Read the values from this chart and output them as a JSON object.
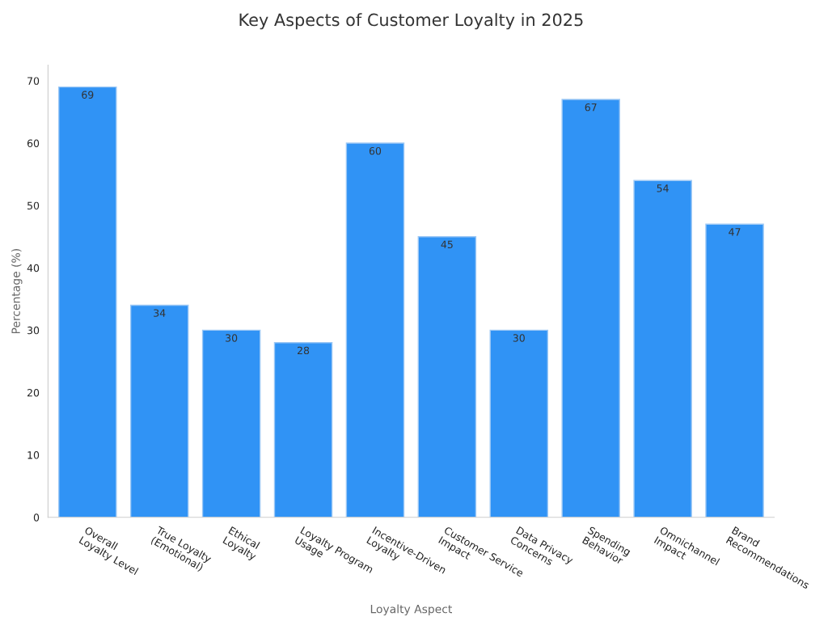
{
  "chart_data": {
    "type": "bar",
    "title": "Key Aspects of Customer Loyalty in 2025",
    "xlabel": "Loyalty Aspect",
    "ylabel": "Percentage (%)",
    "categories": [
      "Overall\nLoyalty Level",
      "True Loyalty\n(Emotional)",
      "Ethical\nLoyalty",
      "Loyalty Program\nUsage",
      "Incentive-Driven\nLoyalty",
      "Customer Service\nImpact",
      "Data Privacy\nConcerns",
      "Spending\nBehavior",
      "Omnichannel\nImpact",
      "Brand\nRecommendations"
    ],
    "values": [
      69,
      34,
      30,
      28,
      60,
      45,
      30,
      67,
      54,
      47
    ],
    "color": "#3093f5",
    "ylim": [
      0,
      72.5
    ],
    "yticks": [
      0,
      10,
      20,
      30,
      40,
      50,
      60,
      70
    ],
    "grid": false,
    "legend": false,
    "data_labels": true
  }
}
